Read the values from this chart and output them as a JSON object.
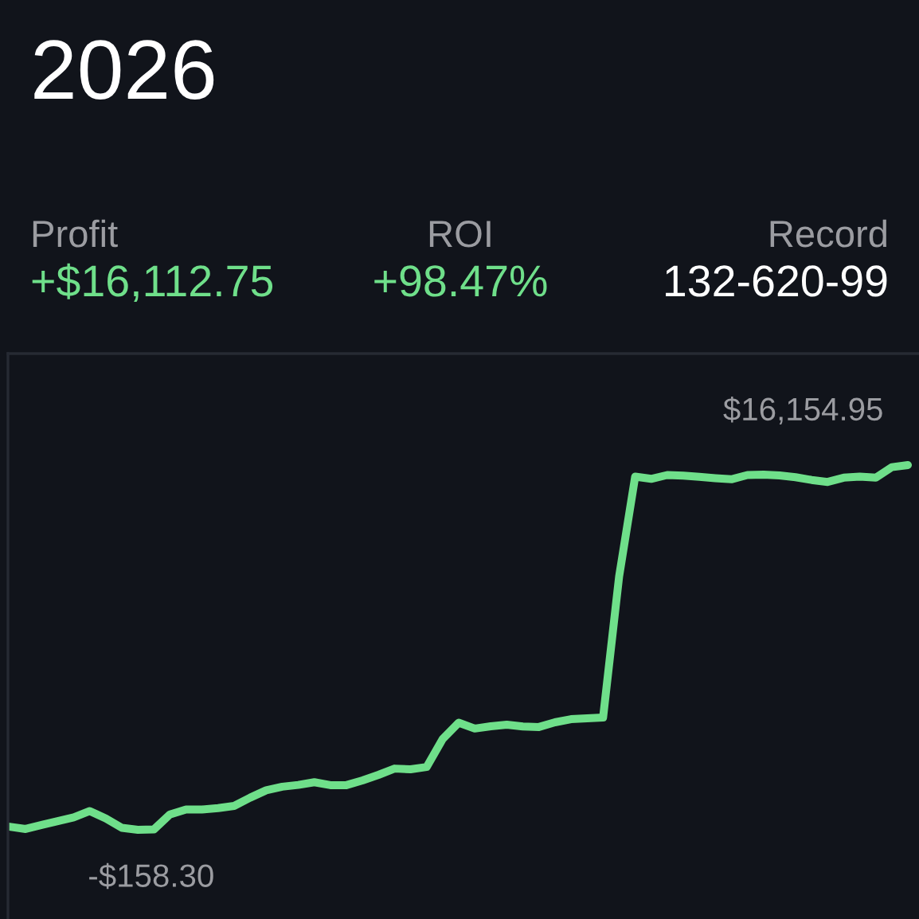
{
  "chart_data": {
    "type": "line",
    "title": "2026",
    "annotations": [
      "Profit",
      "+$16,112.75",
      "ROI",
      "+98.47%",
      "Record",
      "132-620-99"
    ],
    "categories": [
      null,
      null,
      null,
      null,
      null,
      null,
      null,
      null,
      null,
      null,
      null,
      null,
      null,
      null,
      null,
      null,
      null,
      null,
      null,
      null,
      null,
      null,
      null,
      null,
      null,
      null,
      null,
      null,
      null,
      null,
      null,
      null,
      null,
      null,
      null,
      null,
      null,
      null,
      null,
      null,
      null,
      null,
      null,
      null,
      null,
      null,
      null,
      null,
      null,
      null,
      null,
      null,
      null,
      null,
      null,
      null,
      null
    ],
    "values": [
      -20,
      -120,
      60,
      230,
      400,
      680,
      350,
      -70,
      -158.3,
      -140,
      530,
      750,
      750,
      810,
      910,
      1280,
      1610,
      1770,
      1850,
      1970,
      1840,
      1840,
      2050,
      2300,
      2580,
      2550,
      2650,
      3900,
      4630,
      4370,
      4470,
      4540,
      4460,
      4440,
      4650,
      4790,
      4830,
      4860,
      11170,
      15640,
      15540,
      15710,
      15680,
      15630,
      15570,
      15520,
      15710,
      15730,
      15690,
      15610,
      15490,
      15400,
      15590,
      15640,
      15590,
      16060,
      16154.95
    ],
    "value_labels": [
      null,
      null,
      null,
      null,
      null,
      null,
      null,
      null,
      "-$158.30",
      null,
      null,
      null,
      null,
      null,
      null,
      null,
      null,
      null,
      null,
      null,
      null,
      null,
      null,
      null,
      null,
      null,
      null,
      null,
      null,
      null,
      null,
      null,
      null,
      null,
      null,
      null,
      null,
      null,
      null,
      null,
      null,
      null,
      null,
      null,
      null,
      null,
      null,
      null,
      null,
      null,
      null,
      null,
      null,
      null,
      null,
      null,
      "$16,154.95"
    ],
    "color": "#6fdf8a",
    "line_style": "solid"
  }
}
